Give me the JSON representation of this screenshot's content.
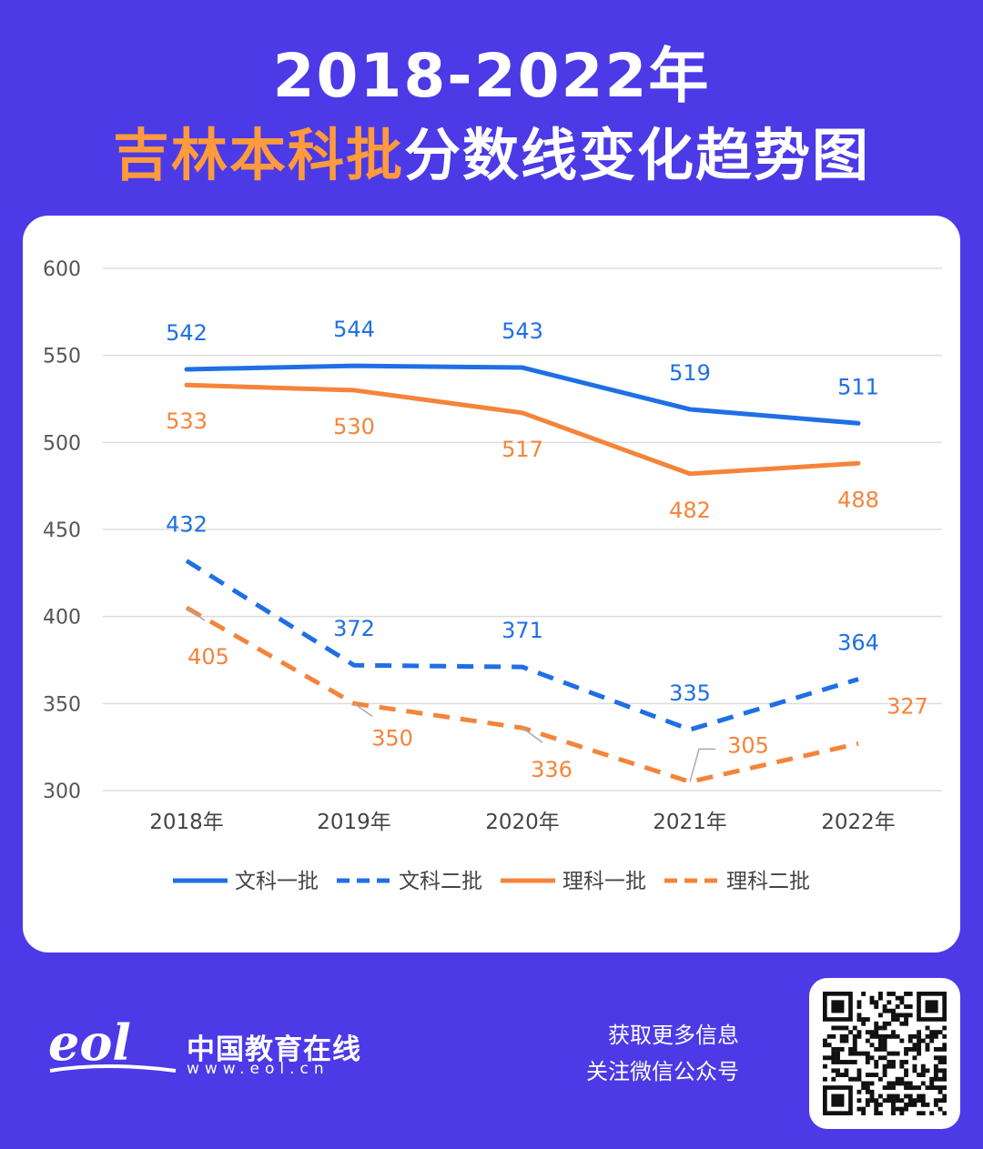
{
  "header": {
    "title_line1": "2018-2022年",
    "title_highlight": "吉林本科批",
    "title_rest": "分数线变化趋势图"
  },
  "chart_data": {
    "type": "line",
    "categories": [
      "2018年",
      "2019年",
      "2020年",
      "2021年",
      "2022年"
    ],
    "ylim": [
      300,
      600
    ],
    "yticks": [
      600,
      550,
      500,
      450,
      400,
      350,
      300
    ],
    "grid": true,
    "legend_position": "bottom",
    "series": [
      {
        "name": "文科一批",
        "values": [
          542,
          544,
          543,
          519,
          511
        ],
        "color": "#1f6fe5",
        "dashed": false
      },
      {
        "name": "文科二批",
        "values": [
          432,
          372,
          371,
          335,
          364
        ],
        "color": "#1f6fe5",
        "dashed": true
      },
      {
        "name": "理科一批",
        "values": [
          533,
          530,
          517,
          482,
          488
        ],
        "color": "#f5843a",
        "dashed": false
      },
      {
        "name": "理科二批",
        "values": [
          405,
          350,
          336,
          305,
          327
        ],
        "color": "#f5843a",
        "dashed": true
      }
    ]
  },
  "footer": {
    "brand_name": "中国教育在线",
    "brand_url": "www.eol.cn",
    "logo_text": "eol",
    "promo_line1": "获取更多信息",
    "promo_line2": "关注微信公众号"
  },
  "icons": {
    "logo": "eol-logo-icon",
    "qr": "qr-code-icon"
  }
}
